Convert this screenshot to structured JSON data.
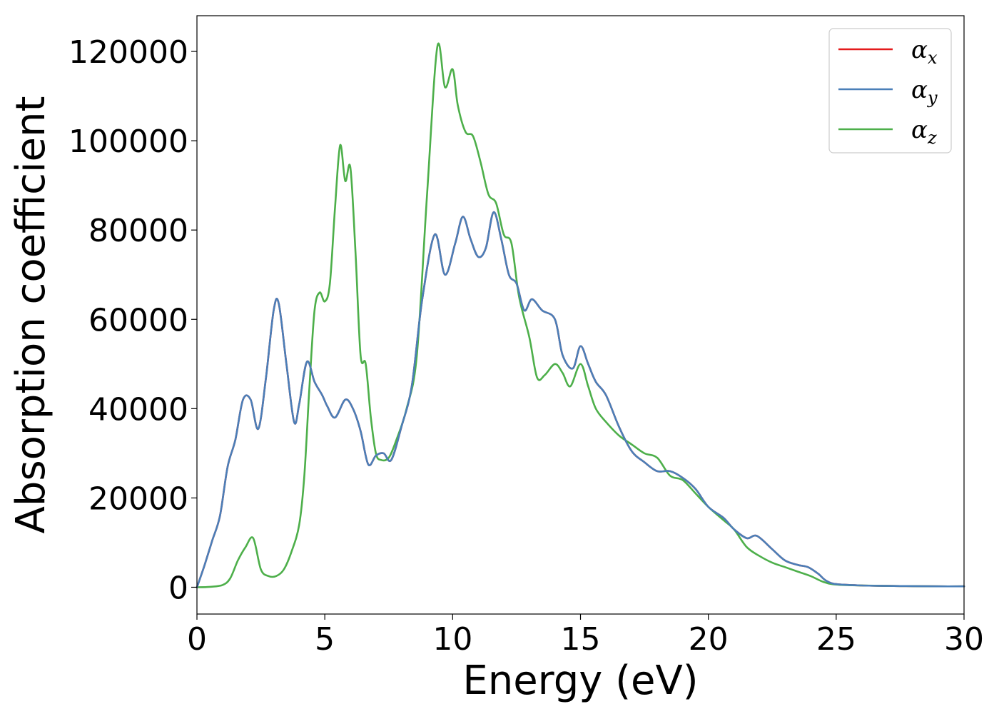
{
  "chart_data": {
    "type": "line",
    "title": "",
    "xlabel": "Energy (eV)",
    "ylabel": "Absorption coefficient",
    "xlim": [
      0,
      30
    ],
    "ylim": [
      -6000,
      128000
    ],
    "xticks": [
      0,
      5,
      10,
      15,
      20,
      25,
      30
    ],
    "xtick_labels": [
      "0",
      "5",
      "10",
      "15",
      "20",
      "25",
      "30"
    ],
    "yticks": [
      0,
      20000,
      40000,
      60000,
      80000,
      100000,
      120000
    ],
    "ytick_labels": [
      "0",
      "20000",
      "40000",
      "60000",
      "80000",
      "100000",
      "120000"
    ],
    "grid": false,
    "legend_position": "top-right",
    "series": [
      {
        "name": "α",
        "subscript": "x",
        "color": "#e41a1c",
        "x": [
          0,
          0.3,
          0.6,
          0.9,
          1.2,
          1.5,
          1.8,
          2.1,
          2.4,
          2.7,
          3.0,
          3.2,
          3.5,
          3.8,
          4.0,
          4.3,
          4.6,
          4.9,
          5.1,
          5.4,
          5.8,
          6.1,
          6.4,
          6.7,
          7.0,
          7.3,
          7.6,
          8.0,
          8.4,
          8.8,
          9.3,
          9.7,
          10.1,
          10.4,
          10.7,
          11.0,
          11.3,
          11.6,
          11.9,
          12.2,
          12.5,
          12.8,
          13.1,
          13.5,
          14.0,
          14.3,
          14.7,
          15.0,
          15.3,
          15.6,
          16.0,
          16.5,
          17.0,
          17.5,
          18.0,
          18.5,
          19.0,
          19.5,
          20.0,
          20.6,
          21.0,
          21.5,
          21.9,
          22.5,
          23.0,
          23.5,
          23.9,
          24.3,
          24.6,
          25.0,
          26,
          27,
          28,
          29,
          30
        ],
        "y": [
          0,
          5000,
          10500,
          16000,
          27000,
          33000,
          42000,
          42000,
          35500,
          47000,
          62000,
          63500,
          50000,
          37000,
          41000,
          50500,
          46000,
          43000,
          40500,
          38000,
          42000,
          40000,
          35000,
          27500,
          29500,
          30000,
          28500,
          36000,
          45000,
          64000,
          79000,
          70000,
          77000,
          83000,
          78000,
          74000,
          76000,
          84000,
          78000,
          70000,
          68000,
          62000,
          64500,
          62000,
          60000,
          52000,
          49000,
          54000,
          50000,
          46000,
          43000,
          36000,
          30500,
          28000,
          26000,
          26000,
          24500,
          22000,
          18000,
          15500,
          13000,
          11000,
          11500,
          8500,
          6000,
          5000,
          4500,
          3000,
          1500,
          700,
          400,
          300,
          250,
          200,
          200
        ]
      },
      {
        "name": "α",
        "subscript": "y",
        "color": "#4a7fb8",
        "x": [
          0,
          0.3,
          0.6,
          0.9,
          1.2,
          1.5,
          1.8,
          2.1,
          2.4,
          2.7,
          3.0,
          3.2,
          3.5,
          3.8,
          4.0,
          4.3,
          4.6,
          4.9,
          5.1,
          5.4,
          5.8,
          6.1,
          6.4,
          6.7,
          7.0,
          7.3,
          7.6,
          8.0,
          8.4,
          8.8,
          9.3,
          9.7,
          10.1,
          10.4,
          10.7,
          11.0,
          11.3,
          11.6,
          11.9,
          12.2,
          12.5,
          12.8,
          13.1,
          13.5,
          14.0,
          14.3,
          14.7,
          15.0,
          15.3,
          15.6,
          16.0,
          16.5,
          17.0,
          17.5,
          18.0,
          18.5,
          19.0,
          19.5,
          20.0,
          20.6,
          21.0,
          21.5,
          21.9,
          22.5,
          23.0,
          23.5,
          23.9,
          24.3,
          24.6,
          25.0,
          26,
          27,
          28,
          29,
          30
        ],
        "y": [
          0,
          5000,
          10500,
          16000,
          27000,
          33000,
          42000,
          42000,
          35500,
          47000,
          62000,
          63500,
          50000,
          37000,
          41000,
          50500,
          46000,
          43000,
          40500,
          38000,
          42000,
          40000,
          35000,
          27500,
          29500,
          30000,
          28500,
          36000,
          45000,
          64000,
          79000,
          70000,
          77000,
          83000,
          78000,
          74000,
          76000,
          84000,
          78000,
          70000,
          68000,
          62000,
          64500,
          62000,
          60000,
          52000,
          49000,
          54000,
          50000,
          46000,
          43000,
          36000,
          30500,
          28000,
          26000,
          26000,
          24500,
          22000,
          18000,
          15500,
          13000,
          11000,
          11500,
          8500,
          6000,
          5000,
          4500,
          3000,
          1500,
          700,
          400,
          300,
          250,
          200,
          200
        ]
      },
      {
        "name": "α",
        "subscript": "z",
        "color": "#4daf4a",
        "x": [
          0,
          0.5,
          1.0,
          1.3,
          1.6,
          1.9,
          2.2,
          2.5,
          2.8,
          3.1,
          3.4,
          3.7,
          4.0,
          4.2,
          4.4,
          4.6,
          4.8,
          5.0,
          5.2,
          5.4,
          5.6,
          5.8,
          6.0,
          6.2,
          6.4,
          6.6,
          6.8,
          7.0,
          7.2,
          7.5,
          7.8,
          8.2,
          8.6,
          9.0,
          9.4,
          9.7,
          10.0,
          10.2,
          10.5,
          10.8,
          11.1,
          11.4,
          11.7,
          12.0,
          12.3,
          12.6,
          13.0,
          13.3,
          13.6,
          14.0,
          14.3,
          14.6,
          15.0,
          15.3,
          15.6,
          16.0,
          16.5,
          17.0,
          17.5,
          18.0,
          18.5,
          19.0,
          19.5,
          20.0,
          20.6,
          21.0,
          21.5,
          22.0,
          22.5,
          23.0,
          23.5,
          24.0,
          24.5,
          25.0,
          26,
          27,
          28,
          29,
          30
        ],
        "y": [
          0,
          100,
          500,
          2000,
          6000,
          9000,
          11000,
          4000,
          2500,
          2500,
          4000,
          8000,
          14000,
          25000,
          45000,
          62000,
          66000,
          64000,
          68000,
          85000,
          99000,
          91000,
          94000,
          75000,
          52000,
          50000,
          38000,
          30000,
          28500,
          29000,
          33000,
          40000,
          52000,
          88000,
          121000,
          112000,
          116000,
          108000,
          102000,
          101000,
          95000,
          88000,
          86000,
          79000,
          77000,
          65000,
          56000,
          47000,
          47500,
          50000,
          48000,
          45000,
          50000,
          45000,
          40000,
          37000,
          34000,
          32000,
          30000,
          29000,
          25000,
          24000,
          21000,
          18000,
          15000,
          13000,
          9000,
          7000,
          5500,
          4500,
          3500,
          2500,
          1200,
          600,
          400,
          300,
          250,
          200,
          200
        ]
      }
    ]
  }
}
